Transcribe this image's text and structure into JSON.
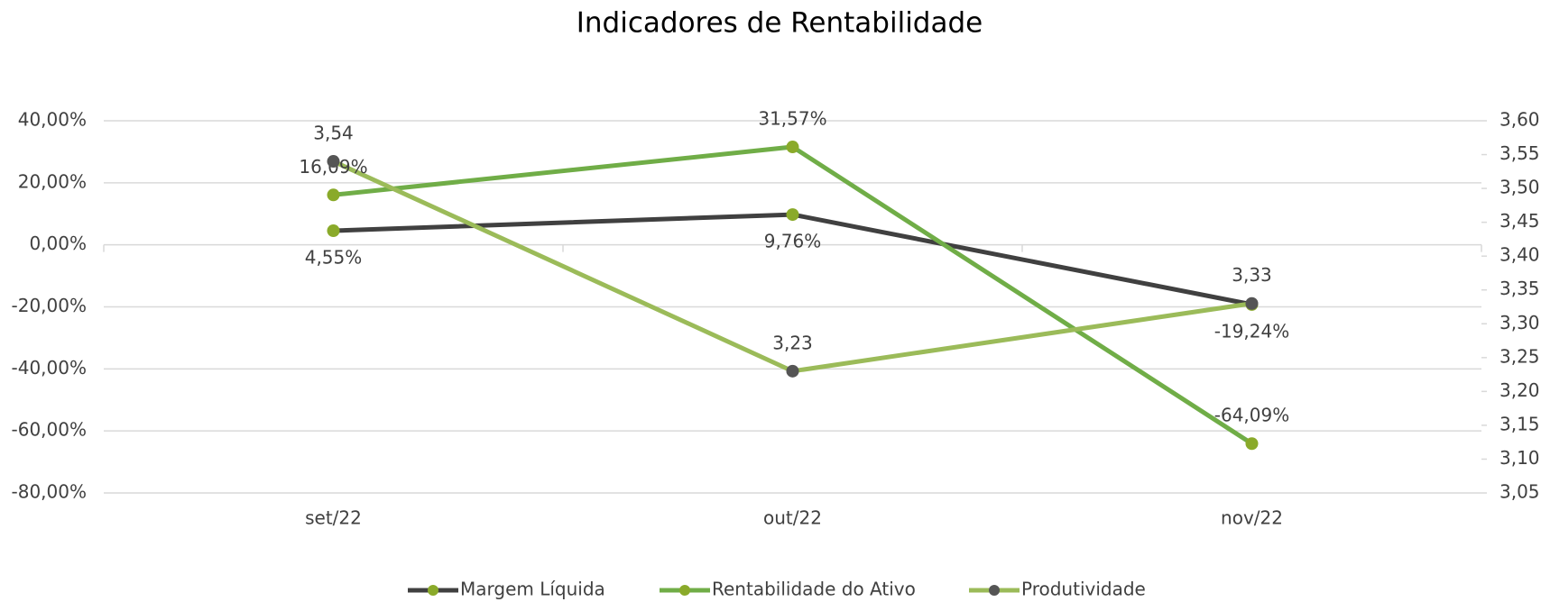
{
  "chart_data": {
    "type": "line",
    "title": "Indicadores de Rentabilidade",
    "categories": [
      "set/22",
      "out/22",
      "nov/22"
    ],
    "series": [
      {
        "name": "Margem Líquida",
        "color": "#404040",
        "marker_color": "#8aaa2a",
        "values": [
          4.55,
          9.76,
          -19.24
        ],
        "value_labels": [
          "4,55%",
          "9,76%",
          "-19,24%"
        ]
      },
      {
        "name": "Rentabilidade do Ativo",
        "color": "#70ad47",
        "marker_color": "#8aaa2a",
        "values": [
          16.09,
          31.57,
          -64.09
        ],
        "value_labels": [
          "16,09%",
          "31,57%",
          "-64,09%"
        ]
      },
      {
        "name": "Produtividade",
        "color": "#9bbb59",
        "marker_color": "#555555",
        "axis": "y2",
        "values": [
          3.54,
          3.23,
          3.33
        ],
        "value_labels": [
          "3,54",
          "3,23",
          "3,33"
        ]
      }
    ],
    "ylim": [
      -80,
      40
    ],
    "yticks": [
      {
        "value": -80,
        "label": "-80,00%"
      },
      {
        "value": -60,
        "label": "-60,00%"
      },
      {
        "value": -40,
        "label": "-40,00%"
      },
      {
        "value": -20,
        "label": "-20,00%"
      },
      {
        "value": 0,
        "label": "0,00%"
      },
      {
        "value": 20,
        "label": "20,00%"
      },
      {
        "value": 40,
        "label": "40,00%"
      }
    ],
    "y2lim": [
      3.05,
      3.6
    ],
    "y2ticks": [
      {
        "value": 3.05,
        "label": "3,05"
      },
      {
        "value": 3.1,
        "label": "3,10"
      },
      {
        "value": 3.15,
        "label": "3,15"
      },
      {
        "value": 3.2,
        "label": "3,20"
      },
      {
        "value": 3.25,
        "label": "3,25"
      },
      {
        "value": 3.3,
        "label": "3,30"
      },
      {
        "value": 3.35,
        "label": "3,35"
      },
      {
        "value": 3.4,
        "label": "3,40"
      },
      {
        "value": 3.45,
        "label": "3,45"
      },
      {
        "value": 3.5,
        "label": "3,50"
      },
      {
        "value": 3.55,
        "label": "3,55"
      },
      {
        "value": 3.6,
        "label": "3,60"
      }
    ],
    "grid": true,
    "legend": "bottom"
  }
}
